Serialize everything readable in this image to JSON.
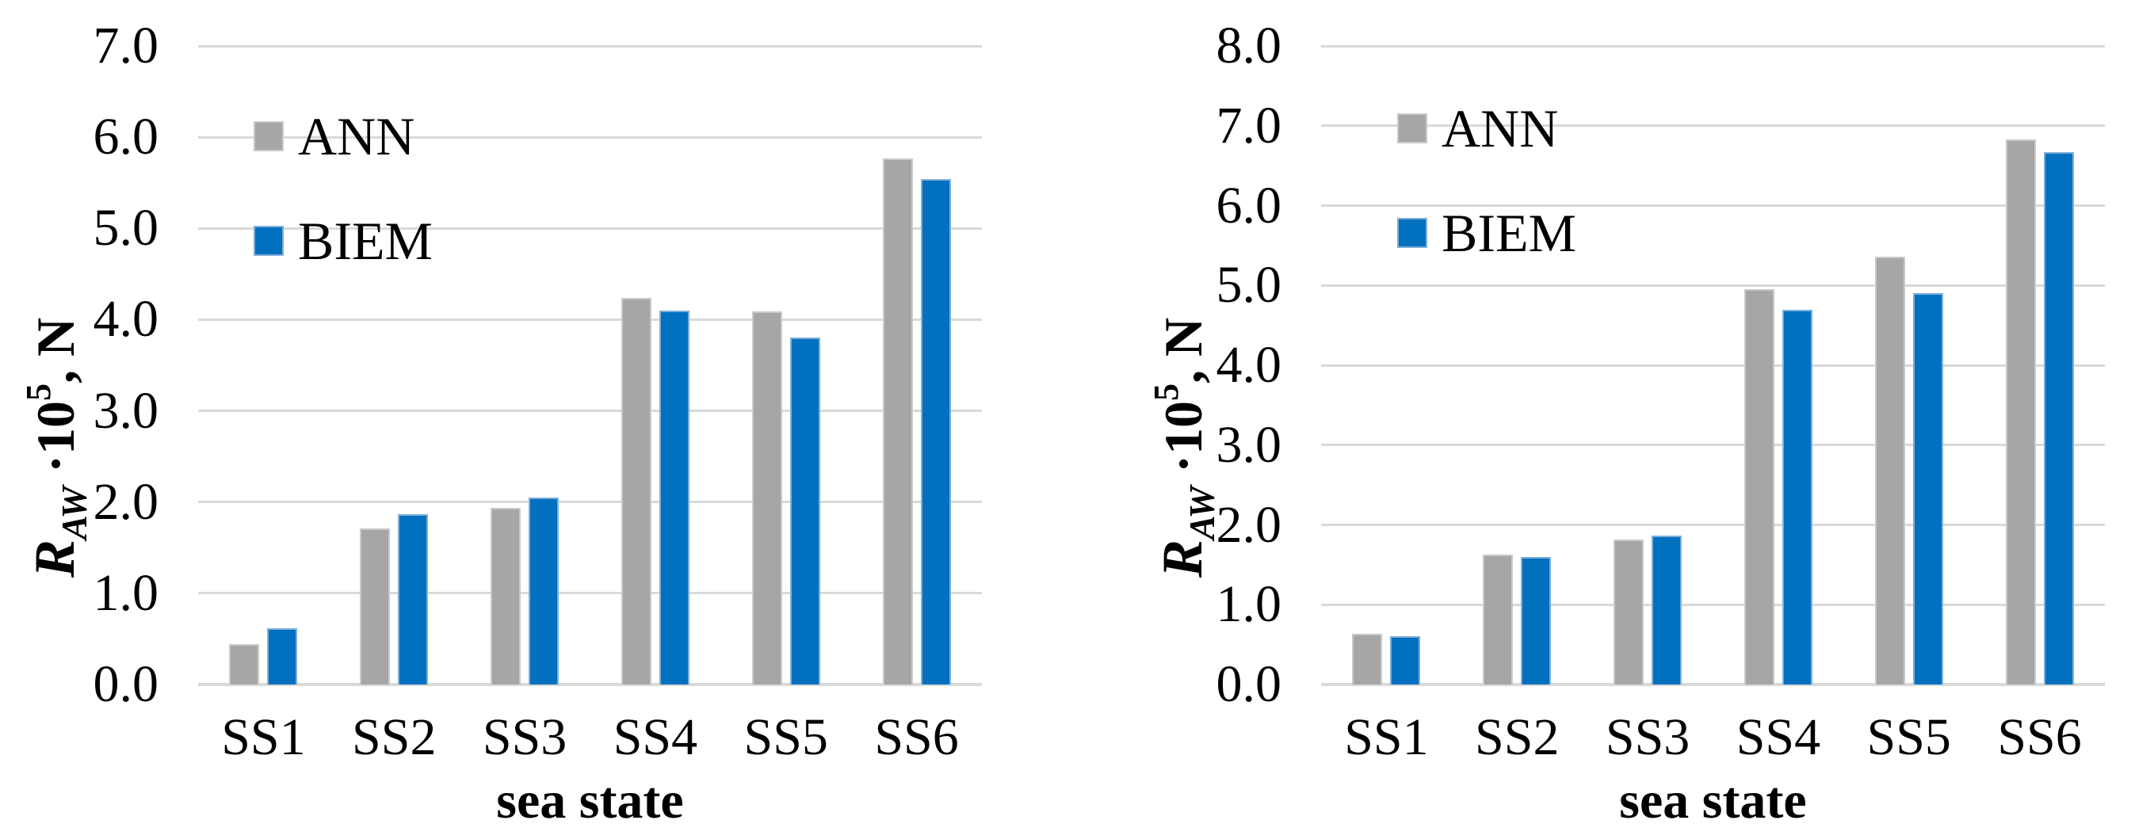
{
  "figure": {
    "background": "#FFFFFF",
    "text_color": "#000000",
    "gridline_color": "#D9D9D9",
    "series_colors": {
      "ANN": "#A6A6A6",
      "BIEM": "#0070BF"
    }
  },
  "chart_data": [
    {
      "type": "bar",
      "panel": "left",
      "title": "",
      "categories": [
        "SS1",
        "SS2",
        "SS3",
        "SS4",
        "SS5",
        "SS6"
      ],
      "series": [
        {
          "name": "ANN",
          "color": "#A6A6A6",
          "values": [
            0.44,
            1.71,
            1.94,
            4.24,
            4.09,
            5.77
          ]
        },
        {
          "name": "BIEM",
          "color": "#0070BF",
          "values": [
            0.62,
            1.87,
            2.05,
            4.1,
            3.8,
            5.54
          ]
        }
      ],
      "xlabel": "sea state",
      "ylabel": "R_AW ·10^5, N",
      "ylabel_parts": {
        "symbol": "R",
        "subscript": "AW",
        "multiplier": " ·10",
        "exponent": "5",
        "unit": ", N"
      },
      "ylim": [
        0.0,
        7.0
      ],
      "ytick_step": 1.0,
      "ytick_labels": [
        "0.0",
        "1.0",
        "2.0",
        "3.0",
        "4.0",
        "5.0",
        "6.0",
        "7.0"
      ],
      "grid": true,
      "legend": [
        "ANN",
        "BIEM"
      ],
      "legend_position": "top-left-inside"
    },
    {
      "type": "bar",
      "panel": "right",
      "title": "",
      "categories": [
        "SS1",
        "SS2",
        "SS3",
        "SS4",
        "SS5",
        "SS6"
      ],
      "series": [
        {
          "name": "ANN",
          "color": "#A6A6A6",
          "values": [
            0.64,
            1.63,
            1.82,
            4.95,
            5.36,
            6.83
          ]
        },
        {
          "name": "BIEM",
          "color": "#0070BF",
          "values": [
            0.61,
            1.6,
            1.87,
            4.69,
            4.9,
            6.67
          ]
        }
      ],
      "xlabel": "sea state",
      "ylabel": "R_AW ·10^5, N",
      "ylabel_parts": {
        "symbol": "R",
        "subscript": "AW",
        "multiplier": " ·10",
        "exponent": "5",
        "unit": ", N"
      },
      "ylim": [
        0.0,
        8.0
      ],
      "ytick_step": 1.0,
      "ytick_labels": [
        "0.0",
        "1.0",
        "2.0",
        "3.0",
        "4.0",
        "5.0",
        "6.0",
        "7.0",
        "8.0"
      ],
      "grid": true,
      "legend": [
        "ANN",
        "BIEM"
      ],
      "legend_position": "top-left-inside"
    }
  ]
}
